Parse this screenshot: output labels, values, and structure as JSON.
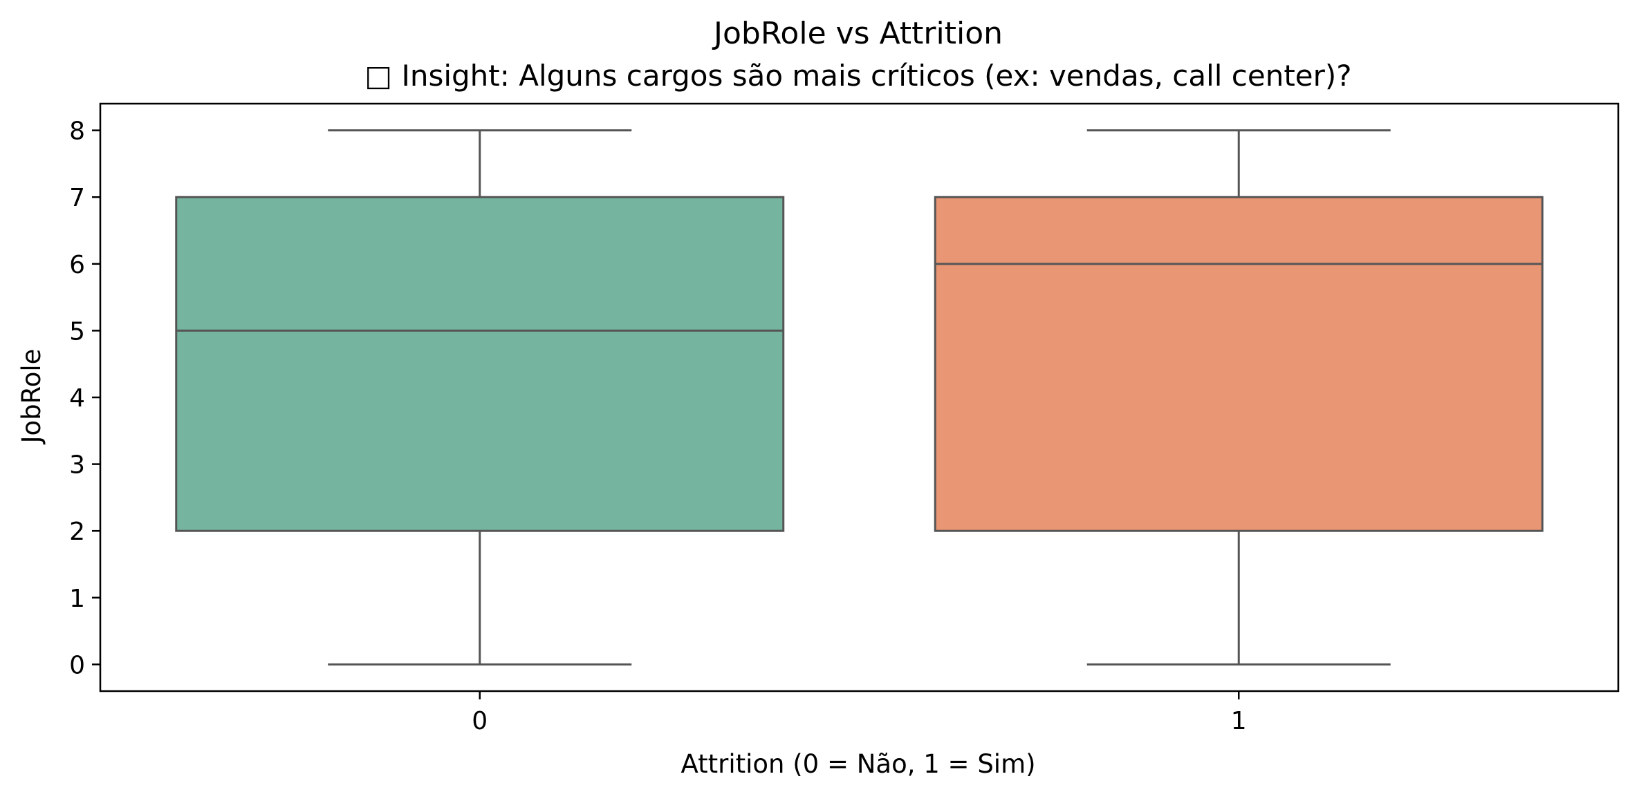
{
  "chart_data": {
    "type": "box",
    "title": "JobRole vs Attrition",
    "subtitle": "□ Insight: Alguns cargos são mais críticos (ex: vendas, call center)?",
    "xlabel": "Attrition (0 = Não, 1 = Sim)",
    "ylabel": "JobRole",
    "ylim": [
      -0.4,
      8.4
    ],
    "yticks": [
      0,
      1,
      2,
      3,
      4,
      5,
      6,
      7,
      8
    ],
    "ytick_labels": [
      "0",
      "1",
      "2",
      "3",
      "4",
      "5",
      "6",
      "7",
      "8"
    ],
    "categories": [
      "0",
      "1"
    ],
    "boxes": [
      {
        "category": "0",
        "whisker_low": 0,
        "q1": 2,
        "median": 5,
        "q3": 7,
        "whisker_high": 8,
        "color": "#75b5a0"
      },
      {
        "category": "1",
        "whisker_low": 0,
        "q1": 2,
        "median": 6,
        "q3": 7,
        "whisker_high": 8,
        "color": "#e89674"
      }
    ],
    "line_color": "#555555",
    "grid": false,
    "legend": "none"
  }
}
